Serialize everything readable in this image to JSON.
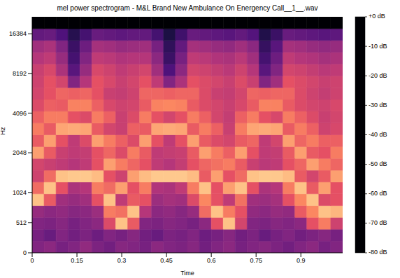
{
  "chart_data": {
    "type": "heatmap",
    "title": "mel power spectrogram - M&L Brand New Ambulance On Energency Call__1__.wav",
    "x_label": "Time",
    "y_label": "Hz",
    "xlim": [
      0,
      1.04
    ],
    "xticks": [
      0,
      0.15,
      0.3,
      0.45,
      0.6,
      0.75,
      0.9
    ],
    "ylim": [
      0,
      22050
    ],
    "yticks": [
      0,
      512,
      1024,
      2048,
      4096,
      8192,
      16384
    ],
    "time_bins": [
      0,
      0.04,
      0.08,
      0.12,
      0.16,
      0.2,
      0.24,
      0.28,
      0.32,
      0.36,
      0.4,
      0.44,
      0.48,
      0.52,
      0.56,
      0.6,
      0.64,
      0.68,
      0.72,
      0.76,
      0.8,
      0.84,
      0.88,
      0.92,
      0.96,
      1.0,
      1.04
    ],
    "freq_bins": [
      0,
      200,
      400,
      600,
      800,
      1000,
      1229,
      1510,
      1856,
      2281,
      2803,
      3445,
      4234,
      5204,
      6395,
      7860,
      9660,
      11872,
      14590,
      17931,
      22050
    ],
    "cells": [
      [
        -50,
        -48,
        -52,
        -50,
        -47,
        -51,
        -53,
        -49,
        -50,
        -52,
        -48,
        -50,
        -51,
        -49,
        -53,
        -50,
        -48,
        -52,
        -50,
        -49,
        -51,
        -53,
        -50,
        -48,
        -52,
        -50
      ],
      [
        -52,
        -55,
        -50,
        -53,
        -51,
        -54,
        -50,
        -52,
        -49,
        -53,
        -55,
        -51,
        -52,
        -50,
        -54,
        -52,
        -49,
        -53,
        -51,
        -55,
        -52,
        -50,
        -53,
        -51,
        -49,
        -52
      ],
      [
        -50,
        -51,
        -49,
        -52,
        -50,
        -48,
        -32,
        -10,
        -28,
        -50,
        -51,
        -49,
        -50,
        -52,
        -48,
        -30,
        -10,
        -34,
        -50,
        -51,
        -49,
        -50,
        -48,
        -30,
        -22,
        -35
      ],
      [
        -46,
        -48,
        -47,
        -49,
        -48,
        -45,
        -22,
        -24,
        -10,
        -40,
        -48,
        -47,
        -49,
        -46,
        -25,
        -10,
        -22,
        -30,
        -47,
        -48,
        -46,
        -47,
        -28,
        -20,
        -10,
        -12
      ],
      [
        -10,
        -28,
        -44,
        -46,
        -44,
        -30,
        -10,
        -38,
        -28,
        -30,
        -45,
        -43,
        -44,
        -32,
        -20,
        -30,
        -38,
        -24,
        -44,
        -45,
        -43,
        -30,
        -20,
        -10,
        -32,
        -30
      ],
      [
        -25,
        -10,
        -30,
        -42,
        -40,
        -22,
        -25,
        -16,
        -30,
        -22,
        -41,
        -42,
        -38,
        -22,
        -10,
        -30,
        -16,
        -10,
        -30,
        -42,
        -40,
        -22,
        -10,
        -28,
        -16,
        -30
      ],
      [
        -35,
        -25,
        -10,
        -9,
        -9,
        -11,
        -30,
        -35,
        -16,
        -11,
        -9,
        -9,
        -9,
        -11,
        -28,
        -16,
        -30,
        -25,
        -10,
        -9,
        -9,
        -11,
        -28,
        -34,
        -28,
        -16
      ],
      [
        -34,
        -36,
        -38,
        -40,
        -38,
        -30,
        -16,
        -22,
        -26,
        -30,
        -38,
        -40,
        -37,
        -30,
        -26,
        -24,
        -22,
        -28,
        -36,
        -39,
        -38,
        -30,
        -26,
        -16,
        -22,
        -26
      ],
      [
        -16,
        -28,
        -36,
        -38,
        -37,
        -30,
        -26,
        -32,
        -22,
        -28,
        -38,
        -37,
        -36,
        -28,
        -16,
        -22,
        -27,
        -16,
        -30,
        -38,
        -37,
        -28,
        -16,
        -28,
        -30,
        -22
      ],
      [
        -28,
        -16,
        -30,
        -38,
        -32,
        -16,
        -22,
        -27,
        -32,
        -16,
        -30,
        -38,
        -30,
        -16,
        -28,
        -32,
        -34,
        -28,
        -26,
        -38,
        -34,
        -16,
        -26,
        -22,
        -27,
        -27
      ],
      [
        -22,
        -28,
        -15,
        -14,
        -15,
        -28,
        -34,
        -36,
        -27,
        -28,
        -15,
        -14,
        -15,
        -28,
        -22,
        -27,
        -36,
        -22,
        -15,
        -14,
        -15,
        -28,
        -22,
        -27,
        -35,
        -33
      ],
      [
        -27,
        -22,
        -22,
        -30,
        -32,
        -22,
        -27,
        -36,
        -32,
        -22,
        -30,
        -34,
        -30,
        -22,
        -27,
        -34,
        -37,
        -27,
        -22,
        -30,
        -33,
        -22,
        -27,
        -32,
        -36,
        -34
      ],
      [
        -32,
        -27,
        -28,
        -21,
        -21,
        -27,
        -33,
        -35,
        -34,
        -28,
        -21,
        -20,
        -21,
        -28,
        -32,
        -34,
        -36,
        -33,
        -28,
        -21,
        -21,
        -28,
        -32,
        -34,
        -35,
        -33
      ],
      [
        -34,
        -30,
        -26,
        -27,
        -26,
        -30,
        -36,
        -37,
        -35,
        -26,
        -26,
        -27,
        -26,
        -26,
        -32,
        -36,
        -37,
        -34,
        -26,
        -27,
        -26,
        -26,
        -32,
        -35,
        -37,
        -35
      ],
      [
        -35,
        -30,
        -34,
        -50,
        -40,
        -30,
        -33,
        -36,
        -34,
        -30,
        -38,
        -50,
        -42,
        -30,
        -32,
        -34,
        -36,
        -32,
        -36,
        -50,
        -44,
        -30,
        -32,
        -34,
        -36,
        -35
      ],
      [
        -36,
        -33,
        -42,
        -58,
        -46,
        -33,
        -35,
        -38,
        -36,
        -34,
        -44,
        -60,
        -48,
        -34,
        -35,
        -37,
        -39,
        -35,
        -40,
        -58,
        -50,
        -34,
        -35,
        -37,
        -39,
        -38
      ],
      [
        -40,
        -38,
        -46,
        -62,
        -50,
        -38,
        -39,
        -41,
        -40,
        -40,
        -48,
        -64,
        -52,
        -38,
        -39,
        -41,
        -42,
        -39,
        -44,
        -62,
        -54,
        -38,
        -40,
        -41,
        -43,
        -42
      ],
      [
        -44,
        -42,
        -50,
        -64,
        -54,
        -43,
        -44,
        -46,
        -45,
        -44,
        -52,
        -66,
        -56,
        -43,
        -44,
        -46,
        -47,
        -44,
        -48,
        -65,
        -58,
        -43,
        -44,
        -46,
        -47,
        -46
      ],
      [
        -56,
        -55,
        -60,
        -68,
        -62,
        -55,
        -56,
        -57,
        -56,
        -56,
        -62,
        -70,
        -63,
        -55,
        -56,
        -57,
        -58,
        -56,
        -59,
        -69,
        -64,
        -55,
        -56,
        -57,
        -58,
        -57
      ],
      [
        -80,
        -80,
        -80,
        -80,
        -80,
        -80,
        -80,
        -80,
        -80,
        -80,
        -80,
        -80,
        -80,
        -80,
        -80,
        -80,
        -80,
        -80,
        -80,
        -80,
        -80,
        -80,
        -80,
        -80,
        -80,
        -80
      ]
    ],
    "colorbar_lim": [
      -80,
      0
    ],
    "colorbar_ticks": [
      {
        "value": 0,
        "label": "+0 dB"
      },
      {
        "value": -10,
        "label": "-10 dB"
      },
      {
        "value": -20,
        "label": "-20 dB"
      },
      {
        "value": -30,
        "label": "-30 dB"
      },
      {
        "value": -40,
        "label": "-40 dB"
      },
      {
        "value": -50,
        "label": "-50 dB"
      },
      {
        "value": -60,
        "label": "-60 dB"
      },
      {
        "value": -70,
        "label": "-70 dB"
      },
      {
        "value": -80,
        "label": "-80 dB"
      }
    ]
  }
}
